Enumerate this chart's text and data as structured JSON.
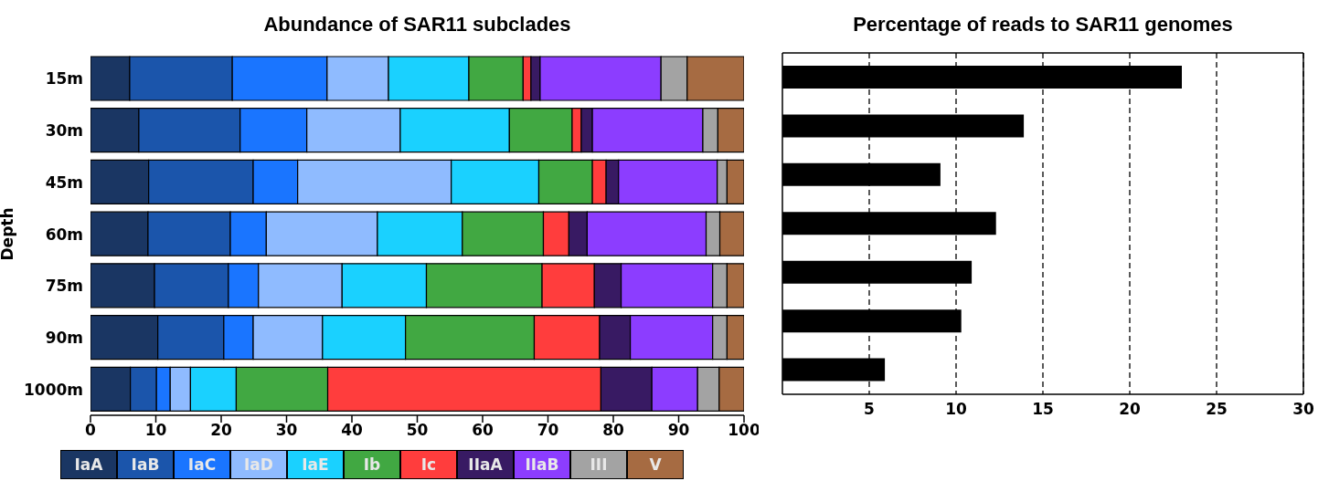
{
  "chart_data": [
    {
      "type": "bar",
      "orientation": "horizontal",
      "stacked": true,
      "title": "Abundance of SAR11 subclades",
      "ylabel": "Depth",
      "categories": [
        "15m",
        "30m",
        "45m",
        "60m",
        "75m",
        "90m",
        "1000m"
      ],
      "xlim": [
        0,
        100
      ],
      "xticks": [
        0,
        10,
        20,
        30,
        40,
        50,
        60,
        70,
        80,
        90,
        100
      ],
      "legend": "bottom",
      "series": [
        {
          "name": "IaA",
          "color": "#1a3663",
          "values": [
            6.0,
            7.4,
            8.9,
            8.8,
            9.8,
            10.3,
            6.1
          ]
        },
        {
          "name": "IaB",
          "color": "#1b55ab",
          "values": [
            15.7,
            15.5,
            16.0,
            12.6,
            11.3,
            10.1,
            4.0
          ]
        },
        {
          "name": "IaC",
          "color": "#1a75ff",
          "values": [
            14.5,
            10.2,
            6.8,
            5.5,
            4.6,
            4.5,
            2.1
          ]
        },
        {
          "name": "IaD",
          "color": "#8fbbff",
          "values": [
            9.4,
            14.3,
            23.5,
            17.0,
            12.8,
            10.6,
            3.1
          ]
        },
        {
          "name": "IaE",
          "color": "#1ad1ff",
          "values": [
            12.3,
            16.7,
            13.4,
            13.0,
            12.9,
            12.7,
            7.0
          ]
        },
        {
          "name": "Ib",
          "color": "#41a842",
          "values": [
            8.3,
            9.6,
            8.2,
            12.4,
            17.7,
            19.7,
            14.0
          ]
        },
        {
          "name": "Ic",
          "color": "#ff3d3d",
          "values": [
            1.2,
            1.4,
            2.1,
            3.9,
            8.0,
            10.0,
            41.8
          ]
        },
        {
          "name": "IIaA",
          "color": "#381a63",
          "values": [
            1.4,
            1.7,
            1.9,
            2.8,
            4.1,
            4.7,
            7.8
          ]
        },
        {
          "name": "IIaB",
          "color": "#8c3dff",
          "values": [
            18.5,
            16.9,
            15.1,
            18.2,
            14.0,
            12.6,
            7.0
          ]
        },
        {
          "name": "III",
          "color": "#a3a3a3",
          "values": [
            4.0,
            2.3,
            1.5,
            2.1,
            2.2,
            2.2,
            3.3
          ]
        },
        {
          "name": "V",
          "color": "#a66b42",
          "values": [
            8.7,
            4.0,
            2.6,
            3.7,
            2.6,
            2.6,
            3.8
          ]
        }
      ]
    },
    {
      "type": "bar",
      "orientation": "horizontal",
      "title": "Percentage of reads to SAR11 genomes",
      "categories": [
        null,
        null,
        null,
        null,
        null,
        null,
        null
      ],
      "values": [
        23.0,
        13.9,
        9.1,
        12.3,
        10.9,
        10.3,
        5.9
      ],
      "color": "#000000",
      "xlim": [
        0,
        30
      ],
      "xticks": [
        5,
        10,
        15,
        20,
        25,
        30
      ],
      "grid": "x",
      "tick_labels": "x"
    }
  ]
}
